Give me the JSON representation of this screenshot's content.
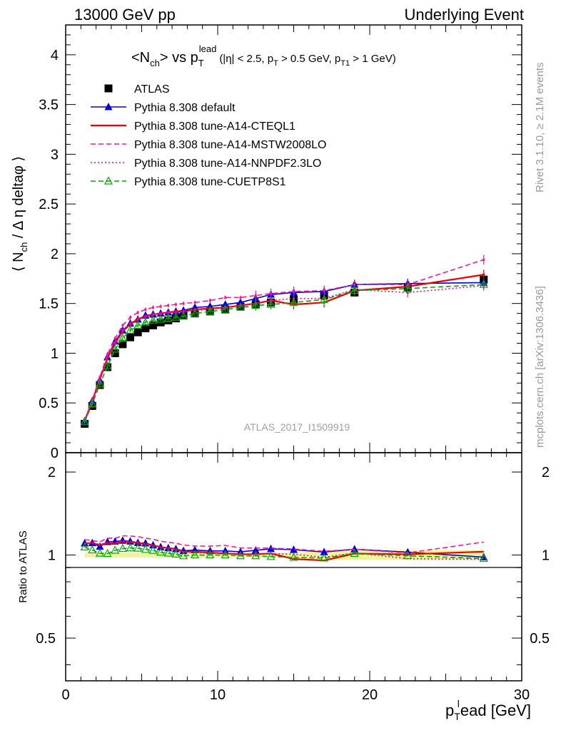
{
  "header": {
    "left": "13000 GeV pp",
    "right": "Underlying Event",
    "side_top": "Rivet 3.1.10, ≥ 2.1M events",
    "side_bottom": "mcplots.cern.ch [arXiv:1306.3436]",
    "analysis_id": "ATLAS_2017_I1509919"
  },
  "chart_data": [
    {
      "type": "scatter",
      "panel": "main",
      "title": "<Nch> vs pT^lead (|η| < 2.5, pT > 0.5 GeV, pT1 > 1 GeV)",
      "title_parts": {
        "a": "<N",
        "a_sub": "ch",
        "b": "> vs p",
        "b_sub": "T",
        "b_sup": "lead",
        "cuts": "(|η| < 2.5, p",
        "cuts_sub1": "T",
        "cuts2": " > 0.5 GeV, p",
        "cuts_sub2": "T1",
        "cuts3": " > 1 GeV)"
      },
      "ylabel": "⟨ Nch / Δη deltaφ ⟩",
      "ylabel_parts": {
        "a": "⟨ N",
        "sub": "ch",
        "b": " / Δ η deltaφ ⟩"
      },
      "xlim": [
        0,
        30
      ],
      "ylim": [
        0,
        4.3
      ],
      "yticks": [
        "0",
        "0.5",
        "1",
        "1.5",
        "2",
        "2.5",
        "3",
        "3.5",
        "4"
      ],
      "x": [
        1.25,
        1.75,
        2.25,
        2.75,
        3.25,
        3.75,
        4.25,
        4.75,
        5.25,
        5.75,
        6.25,
        6.75,
        7.25,
        7.75,
        8.5,
        9.5,
        10.5,
        11.5,
        12.5,
        13.5,
        15.0,
        17.0,
        19.0,
        22.5,
        27.5
      ],
      "series": [
        {
          "name": "ATLAS",
          "color": "#000000",
          "marker": "square",
          "line": "none",
          "values": [
            0.29,
            0.47,
            0.68,
            0.86,
            1.0,
            1.09,
            1.16,
            1.21,
            1.25,
            1.28,
            1.31,
            1.33,
            1.35,
            1.38,
            1.4,
            1.42,
            1.44,
            1.47,
            1.49,
            1.51,
            1.54,
            1.58,
            1.61,
            1.66,
            1.74
          ]
        },
        {
          "name": "Pythia 8.308 default",
          "color": "#0000dd",
          "marker": "triangle",
          "line": "solid",
          "values": [
            0.32,
            0.52,
            0.73,
            0.96,
            1.12,
            1.23,
            1.3,
            1.34,
            1.38,
            1.39,
            1.4,
            1.41,
            1.42,
            1.43,
            1.46,
            1.47,
            1.49,
            1.51,
            1.55,
            1.59,
            1.61,
            1.62,
            1.69,
            1.7,
            1.71
          ]
        },
        {
          "name": "Pythia 8.308 tune-A14-CTEQL1",
          "color": "#ee0000",
          "marker": "none",
          "line": "solid",
          "values": [
            0.32,
            0.52,
            0.74,
            0.95,
            1.1,
            1.22,
            1.29,
            1.34,
            1.37,
            1.39,
            1.4,
            1.41,
            1.42,
            1.42,
            1.44,
            1.45,
            1.46,
            1.48,
            1.5,
            1.53,
            1.49,
            1.51,
            1.63,
            1.67,
            1.79
          ]
        },
        {
          "name": "Pythia 8.308 tune-A14-MSTW2008LO",
          "color": "#ff1493",
          "marker": "none",
          "line": "dashed",
          "values": [
            0.33,
            0.53,
            0.76,
            0.99,
            1.15,
            1.28,
            1.36,
            1.41,
            1.44,
            1.46,
            1.47,
            1.48,
            1.49,
            1.5,
            1.51,
            1.53,
            1.56,
            1.56,
            1.58,
            1.6,
            1.62,
            1.63,
            1.69,
            1.69,
            1.94
          ]
        },
        {
          "name": "Pythia 8.308 tune-A14-NNPDF2.3LO",
          "color": "#ee00aa",
          "marker": "none",
          "line": "dotted",
          "values": [
            0.32,
            0.52,
            0.74,
            0.96,
            1.11,
            1.23,
            1.3,
            1.35,
            1.37,
            1.39,
            1.4,
            1.41,
            1.41,
            1.42,
            1.43,
            1.44,
            1.46,
            1.48,
            1.5,
            1.53,
            1.55,
            1.55,
            1.64,
            1.61,
            1.68
          ]
        },
        {
          "name": "Pythia 8.308 tune-CUETP8S1",
          "color": "#00aa00",
          "marker": "open-triangle",
          "line": "dashed",
          "values": [
            0.31,
            0.49,
            0.69,
            0.87,
            1.04,
            1.15,
            1.23,
            1.28,
            1.31,
            1.33,
            1.34,
            1.35,
            1.36,
            1.37,
            1.4,
            1.42,
            1.44,
            1.46,
            1.48,
            1.49,
            1.51,
            1.54,
            1.63,
            1.65,
            1.69
          ]
        }
      ]
    },
    {
      "type": "scatter",
      "panel": "ratio",
      "ylabel": "Ratio to ATLAS",
      "xlabel": "p_T^lead [GeV]",
      "xlabel_parts": {
        "a": "p",
        "sub": "T",
        "sup": "l",
        "b": "ead [GeV]"
      },
      "xlim": [
        0,
        30
      ],
      "ylim": [
        0.35,
        2.35
      ],
      "yscale": "log",
      "xticks": [
        "0",
        "10",
        "20",
        "30"
      ],
      "yticks": [
        "0.5",
        "1",
        "2"
      ],
      "band_color": "#f0f59a",
      "note": "series ratios = model / ATLAS, same order as main panel series 2-6"
    }
  ],
  "legend": {
    "entries": [
      "ATLAS",
      "Pythia 8.308 default",
      "Pythia 8.308 tune-A14-CTEQL1",
      "Pythia 8.308 tune-A14-MSTW2008LO",
      "Pythia 8.308 tune-A14-NNPDF2.3LO",
      "Pythia 8.308 tune-CUETP8S1"
    ],
    "placement": "top-left"
  }
}
